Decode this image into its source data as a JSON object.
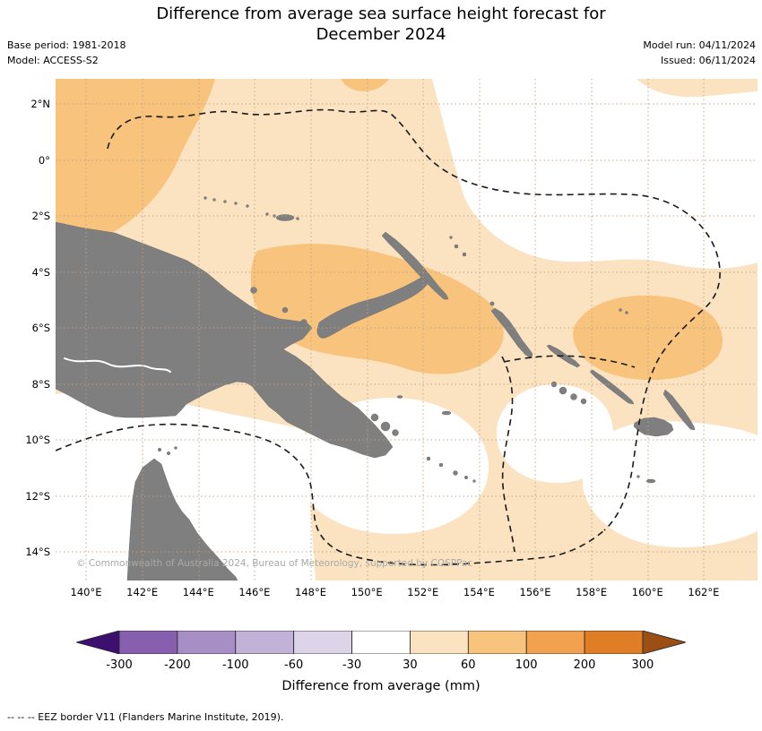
{
  "title": {
    "line1": "Difference from average sea surface height forecast for",
    "line2": "December 2024"
  },
  "meta": {
    "base_period": "Base period: 1981-2018",
    "model": "Model: ACCESS-S2",
    "model_run": "Model run: 04/11/2024",
    "issued": "Issued: 06/11/2024"
  },
  "map": {
    "lat_ticks": [
      "2°N",
      "0°",
      "2°S",
      "4°S",
      "6°S",
      "8°S",
      "10°S",
      "12°S",
      "14°S"
    ],
    "lon_ticks": [
      "140°E",
      "142°E",
      "144°E",
      "146°E",
      "148°E",
      "150°E",
      "152°E",
      "154°E",
      "156°E",
      "158°E",
      "160°E",
      "162°E"
    ],
    "attribution": "© Commonwealth of Australia 2024, Bureau of Meteorology, supported by COSPPac",
    "colors": {
      "land": "#7f7f7f",
      "near_zero_sea": "#ffffff",
      "anomaly_30_60_mm": "#fbe3c1",
      "anomaly_60_100_mm": "#f8c37c",
      "grid_line": "#bfa184",
      "eez_border": "#1a1a1a"
    }
  },
  "colorbar": {
    "title": "Difference from average (mm)",
    "ticks": [
      "-300",
      "-200",
      "-100",
      "-60",
      "-30",
      "30",
      "60",
      "100",
      "200",
      "300"
    ],
    "segment_colors": [
      "#3d0f6e",
      "#8660ae",
      "#a78fc6",
      "#c2b2d8",
      "#ddd4ea",
      "#ffffff",
      "#fbe3c1",
      "#f8c37c",
      "#f2a14e",
      "#e07e27",
      "#9c4f15"
    ]
  },
  "footer": {
    "eez_note": "-- -- -- EEZ border V11 (Flanders Marine Institute, 2019)."
  }
}
